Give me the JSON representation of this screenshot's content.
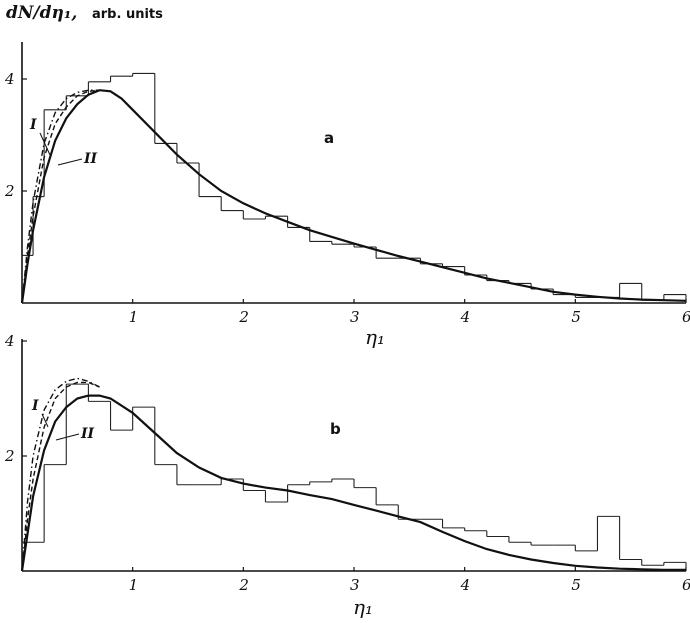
{
  "figure": {
    "y_axis_label": "dN/dη₁,",
    "y_axis_units": "arb. units",
    "x_axis_label": "η₁"
  },
  "chart_data": [
    {
      "type": "line",
      "panel_label": "a",
      "xlabel": "η₁",
      "ylabel": "dN/dη₁, arb. units",
      "xlim": [
        0,
        6
      ],
      "ylim": [
        0,
        4.3
      ],
      "x_ticks": [
        "1",
        "2",
        "3",
        "4",
        "5",
        "6"
      ],
      "y_ticks": [
        "2",
        "4"
      ],
      "histogram": {
        "edges": [
          0,
          0.1,
          0.2,
          0.4,
          0.6,
          0.8,
          1.0,
          1.2,
          1.4,
          1.6,
          1.8,
          2.0,
          2.2,
          2.4,
          2.6,
          2.8,
          3.0,
          3.2,
          3.4,
          3.6,
          3.8,
          4.0,
          4.2,
          4.4,
          4.6,
          4.8,
          5.0,
          5.2,
          5.4,
          5.6,
          5.8,
          6.0
        ],
        "values": [
          0.85,
          1.9,
          3.45,
          3.7,
          3.95,
          4.05,
          4.1,
          2.85,
          2.5,
          1.9,
          1.65,
          1.5,
          1.55,
          1.35,
          1.1,
          1.05,
          1.0,
          0.8,
          0.8,
          0.7,
          0.65,
          0.5,
          0.4,
          0.35,
          0.25,
          0.15,
          0.1,
          0.1,
          0.35,
          0.05,
          0.15
        ]
      },
      "series": [
        {
          "name": "",
          "style": "solid",
          "x": [
            0,
            0.05,
            0.1,
            0.2,
            0.3,
            0.4,
            0.5,
            0.6,
            0.7,
            0.8,
            0.9,
            1.0,
            1.2,
            1.4,
            1.6,
            1.8,
            2.0,
            2.2,
            2.4,
            2.6,
            2.8,
            3.0,
            3.2,
            3.4,
            3.6,
            3.8,
            4.0,
            4.2,
            4.4,
            4.6,
            4.8,
            5.0,
            5.2,
            5.4,
            5.6,
            5.8,
            6.0
          ],
          "y": [
            0,
            0.7,
            1.3,
            2.25,
            2.9,
            3.3,
            3.55,
            3.72,
            3.8,
            3.78,
            3.65,
            3.45,
            3.05,
            2.65,
            2.3,
            2.0,
            1.78,
            1.6,
            1.45,
            1.3,
            1.18,
            1.06,
            0.95,
            0.84,
            0.74,
            0.64,
            0.54,
            0.44,
            0.36,
            0.28,
            0.2,
            0.15,
            0.11,
            0.08,
            0.06,
            0.05,
            0.04
          ]
        },
        {
          "name": "I",
          "style": "dash-dot",
          "x": [
            0,
            0.05,
            0.1,
            0.2,
            0.3,
            0.4,
            0.5,
            0.6,
            0.7
          ],
          "y": [
            0,
            1.0,
            1.8,
            2.85,
            3.4,
            3.65,
            3.76,
            3.8,
            3.8
          ]
        },
        {
          "name": "II",
          "style": "dashed",
          "x": [
            0,
            0.05,
            0.1,
            0.2,
            0.3,
            0.4,
            0.5,
            0.6,
            0.7
          ],
          "y": [
            0,
            0.85,
            1.55,
            2.6,
            3.2,
            3.5,
            3.7,
            3.78,
            3.8
          ]
        }
      ]
    },
    {
      "type": "line",
      "panel_label": "b",
      "xlabel": "η₁",
      "ylabel": "dN/dη₁, arb. units",
      "xlim": [
        0,
        6
      ],
      "ylim": [
        0,
        4.0
      ],
      "x_ticks": [
        "1",
        "2",
        "3",
        "4",
        "5",
        "6"
      ],
      "y_ticks": [
        "2",
        "4"
      ],
      "histogram": {
        "edges": [
          0,
          0.2,
          0.4,
          0.6,
          0.8,
          1.0,
          1.2,
          1.4,
          1.6,
          1.8,
          2.0,
          2.2,
          2.4,
          2.6,
          2.8,
          3.0,
          3.2,
          3.4,
          3.6,
          3.8,
          4.0,
          4.2,
          4.4,
          4.6,
          4.8,
          5.0,
          5.2,
          5.4,
          5.6,
          5.8,
          6.0
        ],
        "values": [
          0.5,
          1.85,
          3.25,
          2.95,
          2.45,
          2.85,
          1.85,
          1.5,
          1.5,
          1.6,
          1.4,
          1.2,
          1.5,
          1.55,
          1.6,
          1.45,
          1.15,
          0.9,
          0.9,
          0.75,
          0.7,
          0.6,
          0.5,
          0.45,
          0.45,
          0.35,
          0.95,
          0.2,
          0.1,
          0.15
        ]
      },
      "series": [
        {
          "name": "",
          "style": "solid",
          "x": [
            0,
            0.1,
            0.2,
            0.3,
            0.4,
            0.5,
            0.6,
            0.7,
            0.8,
            1.0,
            1.2,
            1.4,
            1.6,
            1.8,
            2.0,
            2.2,
            2.4,
            2.6,
            2.8,
            3.0,
            3.2,
            3.4,
            3.6,
            3.8,
            4.0,
            4.2,
            4.4,
            4.6,
            4.8,
            5.0,
            5.2,
            5.4,
            5.6,
            5.8,
            6.0
          ],
          "y": [
            0,
            1.3,
            2.1,
            2.6,
            2.85,
            3.0,
            3.05,
            3.05,
            3.0,
            2.75,
            2.4,
            2.05,
            1.8,
            1.62,
            1.52,
            1.45,
            1.4,
            1.32,
            1.25,
            1.15,
            1.05,
            0.95,
            0.85,
            0.68,
            0.52,
            0.38,
            0.28,
            0.2,
            0.14,
            0.09,
            0.06,
            0.04,
            0.03,
            0.02,
            0.02
          ]
        },
        {
          "name": "I",
          "style": "dash-dot",
          "x": [
            0,
            0.05,
            0.1,
            0.2,
            0.3,
            0.4,
            0.5,
            0.6,
            0.7
          ],
          "y": [
            0,
            1.2,
            2.0,
            2.8,
            3.15,
            3.3,
            3.35,
            3.3,
            3.2
          ]
        },
        {
          "name": "II",
          "style": "dashed",
          "x": [
            0,
            0.05,
            0.1,
            0.2,
            0.3,
            0.4,
            0.5,
            0.6,
            0.7
          ],
          "y": [
            0,
            0.9,
            1.6,
            2.5,
            3.0,
            3.2,
            3.28,
            3.28,
            3.2
          ]
        }
      ]
    }
  ]
}
